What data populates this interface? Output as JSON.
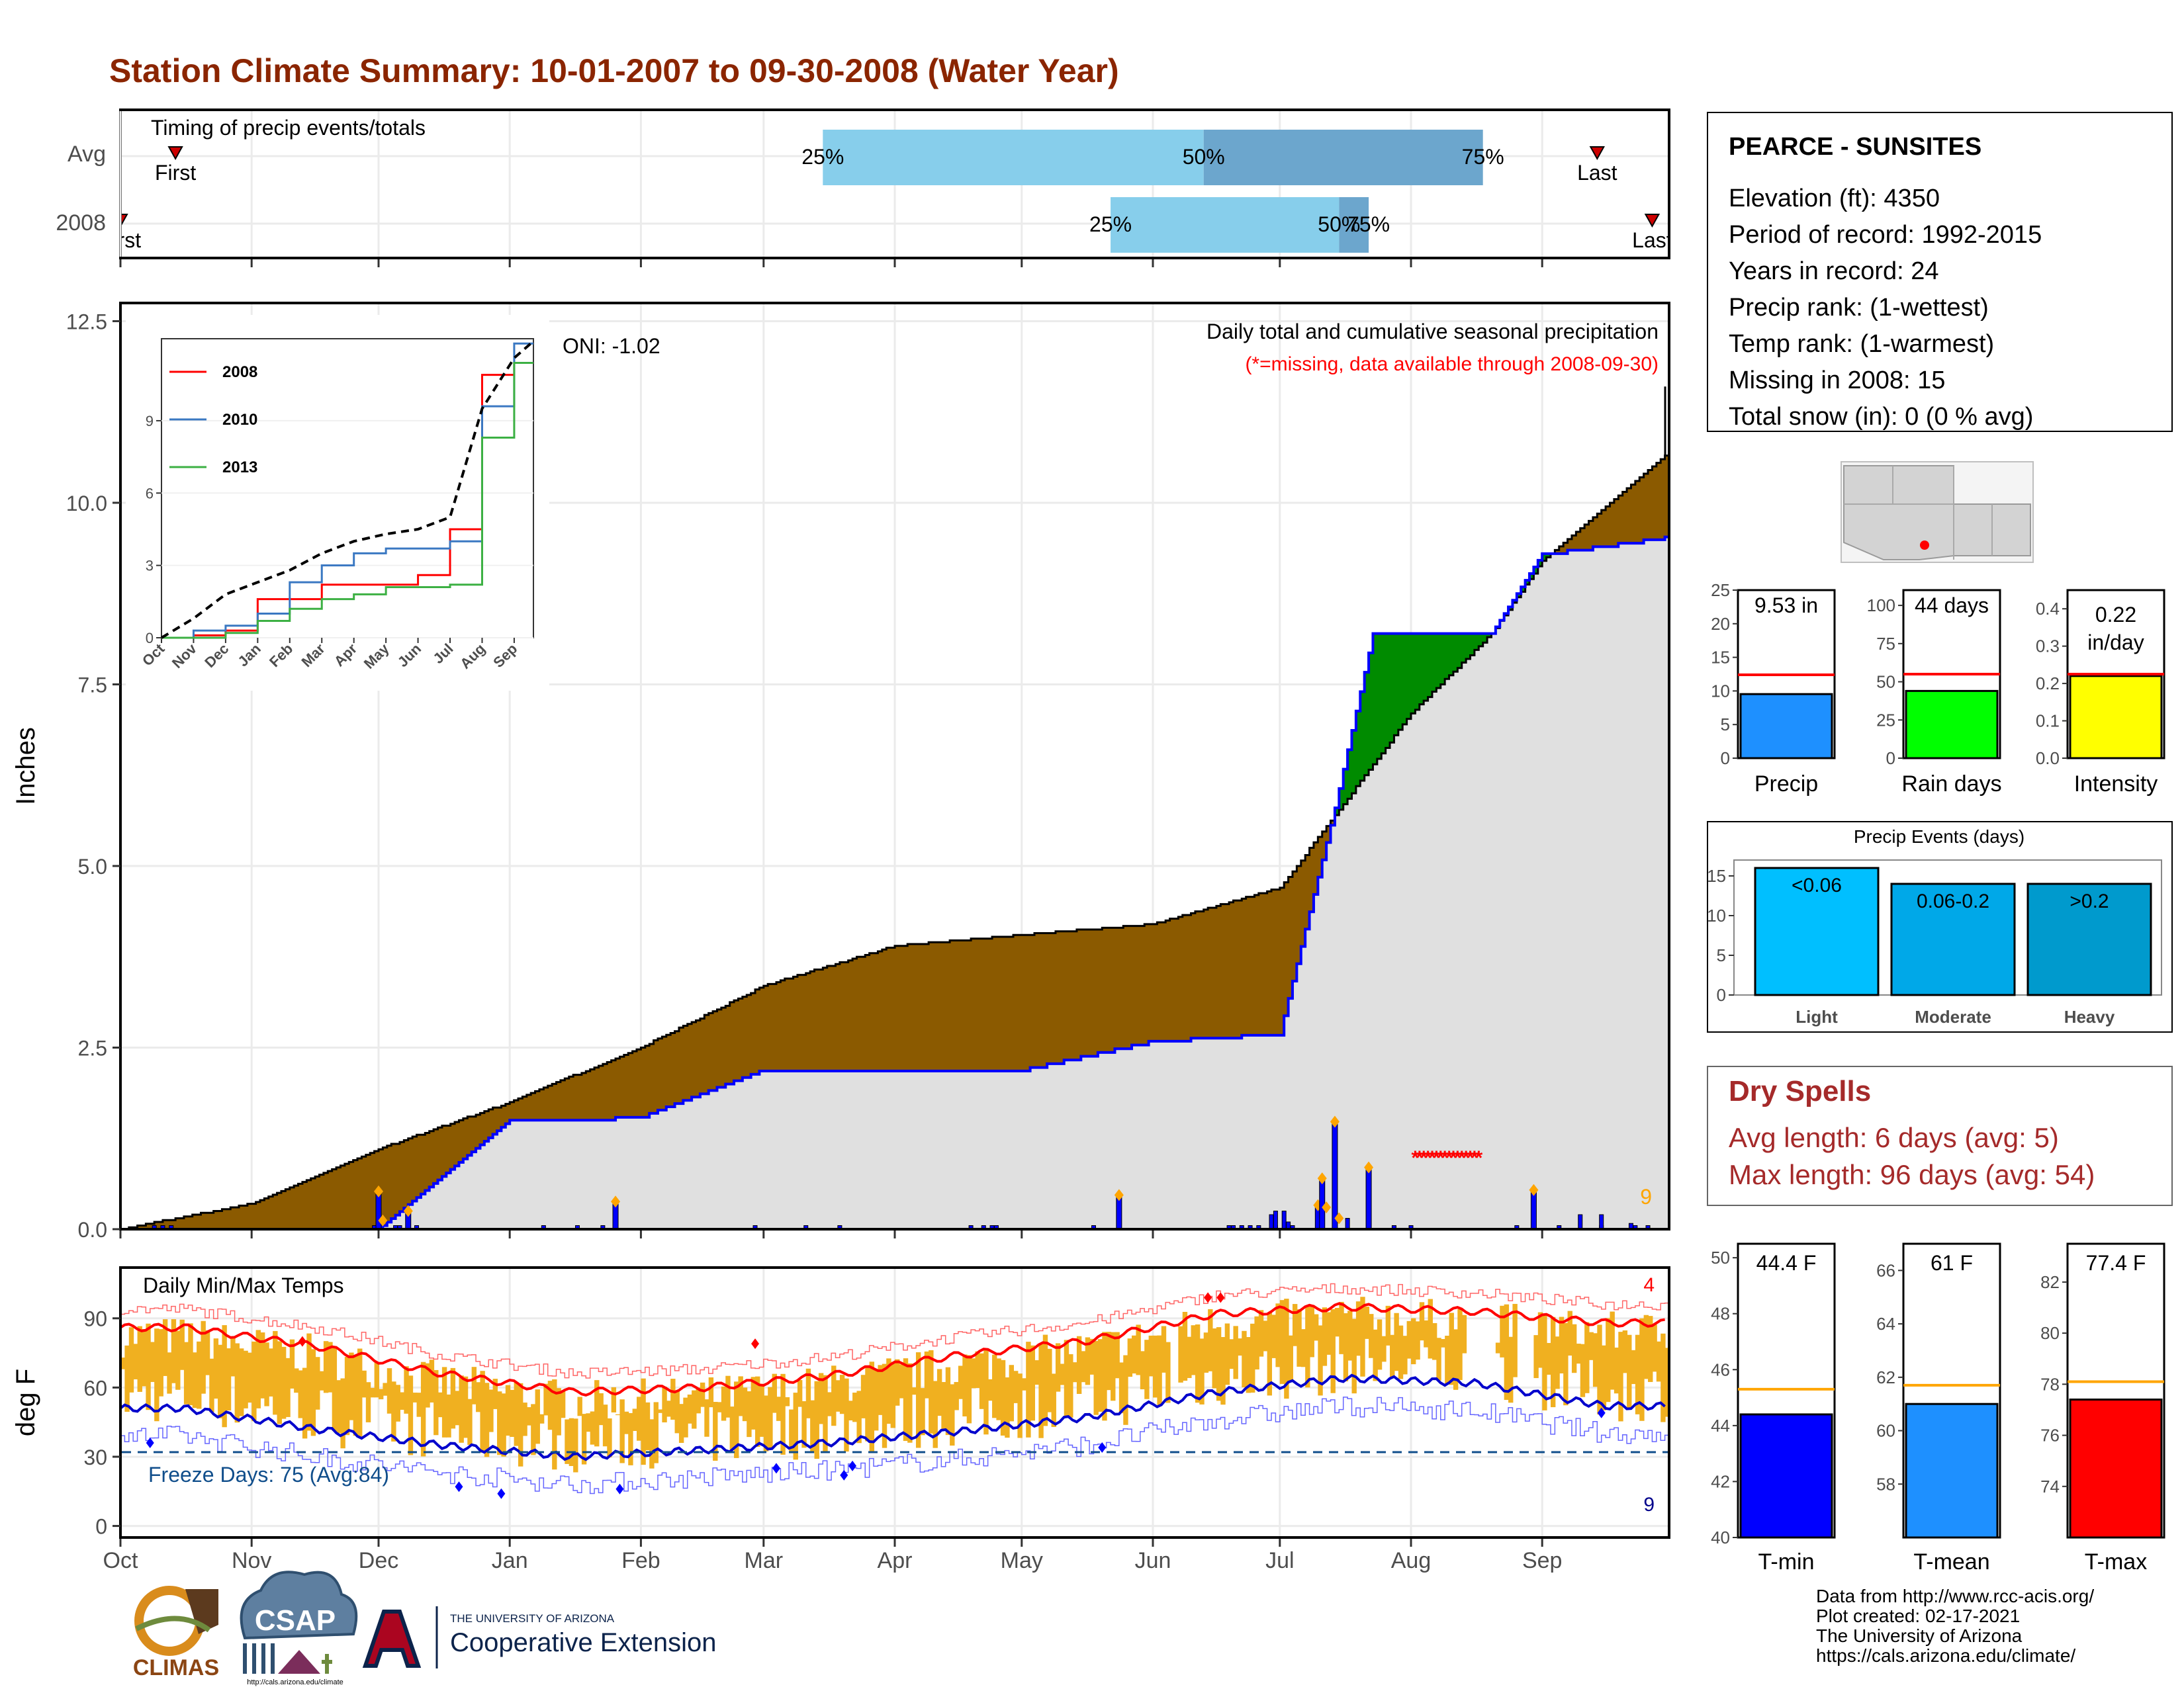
{
  "title": "Station Climate Summary: 10-01-2007 to 09-30-2008 (Water Year)",
  "colors": {
    "title": "#8B2500",
    "brown": "#8B5A00",
    "green": "#008B00",
    "blue": "#0000FF",
    "light_gray": "#E0E0E0",
    "gold": "#F0B020",
    "red": "#FF0000",
    "orange": "#FFA500",
    "dark_blue": "#00008B",
    "dry_red": "#A52A2A"
  },
  "timing": {
    "title": "Timing of precip events/totals",
    "rows": [
      "Avg",
      "2008"
    ],
    "avg": {
      "p25_label": "25%",
      "p50_label": "50%",
      "p75_label": "75%",
      "first": "First",
      "last": "Last",
      "p25_day": 166,
      "p50_day": 256,
      "p75_day": 322,
      "first_day": 13,
      "last_day": 349
    },
    "y2008": {
      "p25_label": "25%",
      "p50_label": "50%",
      "p75_label": "75%",
      "first": "First",
      "last": "Last",
      "p25_day": 234,
      "p50_day": 288,
      "p75_day": 295,
      "first_day": 0,
      "last_day": 362
    }
  },
  "precip": {
    "ylabel": "Inches",
    "oni": "ONI: -1.02",
    "subtitle": "Daily total and cumulative seasonal precipitation",
    "missing_note": "(*=missing, data available through 2008-09-30)",
    "count_label": "9",
    "ylim": [
      0,
      12.5
    ],
    "yticks": [
      "0.0",
      "2.5",
      "5.0",
      "7.5",
      "10.0",
      "12.5"
    ]
  },
  "inset": {
    "xlabels": [
      "Oct",
      "Nov",
      "Dec",
      "Jan",
      "Feb",
      "Mar",
      "Apr",
      "May",
      "Jun",
      "Jul",
      "Aug",
      "Sep"
    ],
    "yticks": [
      "0",
      "3",
      "6",
      "9"
    ],
    "legend": [
      "2008",
      "2010",
      "2013"
    ]
  },
  "temps": {
    "ylabel": "deg F",
    "title": "Daily Min/Max Temps",
    "freeze": "Freeze Days: 75 (Avg:84)",
    "max_count": "4",
    "min_count": "9",
    "yticks": [
      "0",
      "30",
      "60",
      "90"
    ],
    "ylim": [
      -5,
      112
    ]
  },
  "months": [
    "Oct",
    "Nov",
    "Dec",
    "Jan",
    "Feb",
    "Mar",
    "Apr",
    "May",
    "Jun",
    "Jul",
    "Aug",
    "Sep"
  ],
  "station": {
    "name": "PEARCE - SUNSITES",
    "lines": [
      "Elevation (ft): 4350",
      "Period of record: 1992-2015",
      "Years in record: 24",
      "Precip rank:  (1-wettest)",
      "Temp rank:  (1-warmest)",
      "Missing in 2008: 15",
      "Total snow (in): 0 (0 % avg)"
    ]
  },
  "mini_bars": [
    {
      "label": "Precip",
      "value_text": "9.53 in",
      "value": 9.53,
      "avg": 12.4,
      "ylim": [
        0,
        25
      ],
      "yticks": [
        "0",
        "5",
        "10",
        "15",
        "20",
        "25"
      ],
      "color": "#1E90FF"
    },
    {
      "label": "Rain days",
      "value_text": "44 days",
      "value": 44,
      "avg": 55,
      "ylim": [
        0,
        110
      ],
      "yticks": [
        "0",
        "25",
        "50",
        "75",
        "100"
      ],
      "color": "#00FF00"
    },
    {
      "label": "Intensity",
      "value_text": "0.22 in/day",
      "value": 0.22,
      "avg": 0.225,
      "ylim": [
        0,
        0.45
      ],
      "yticks": [
        "0.0",
        "0.1",
        "0.2",
        "0.3",
        "0.4"
      ],
      "color": "#FFFF00"
    }
  ],
  "events": {
    "title": "Precip Events (days)",
    "yticks": [
      "0",
      "5",
      "10",
      "15"
    ],
    "bars": [
      {
        "label": "Light",
        "inner": "<0.06",
        "value": 16,
        "color": "#00BFFF"
      },
      {
        "label": "Moderate",
        "inner": "0.06-0.2",
        "value": 14,
        "color": "#00A8E8"
      },
      {
        "label": "Heavy",
        "inner": ">0.2",
        "value": 14,
        "color": "#009ACD"
      }
    ]
  },
  "dry_spells": {
    "title": "Dry Spells",
    "avg": "Avg length: 6 days (avg: 5)",
    "max": "Max length: 96 days (avg: 54)"
  },
  "temp_bars": [
    {
      "label": "T-min",
      "value_text": "44.4 F",
      "value": 44.4,
      "avg": 45.3,
      "ylim": [
        40,
        50.5
      ],
      "yticks": [
        "40",
        "42",
        "44",
        "46",
        "48",
        "50"
      ],
      "color": "#0000FF"
    },
    {
      "label": "T-mean",
      "value_text": "61 F",
      "value": 61.0,
      "avg": 61.7,
      "ylim": [
        56,
        67
      ],
      "yticks": [
        "58",
        "60",
        "62",
        "64",
        "66"
      ],
      "color": "#1E90FF"
    },
    {
      "label": "T-max",
      "value_text": "77.4 F",
      "value": 77.4,
      "avg": 78.1,
      "ylim": [
        72,
        83.5
      ],
      "yticks": [
        "74",
        "76",
        "78",
        "80",
        "82"
      ],
      "color": "#FF0000"
    }
  ],
  "logos": {
    "climas": "CLIMAS",
    "csap": "CSAP",
    "csap_url": "http://cals.arizona.edu/climate",
    "ua_small": "THE UNIVERSITY OF ARIZONA",
    "ua_big": "Cooperative Extension"
  },
  "footer": [
    "Data from http://www.rcc-acis.org/",
    "Plot created: 02-17-2021",
    "The University of Arizona",
    "https://cals.arizona.edu/climate/"
  ],
  "chart_data": [
    {
      "type": "area",
      "title": "Daily total and cumulative seasonal precipitation",
      "ylabel": "Inches",
      "ylim": [
        0,
        12.5
      ],
      "x": [
        "2007-10-01",
        "2007-11-01",
        "2007-12-01",
        "2008-01-01",
        "2008-02-01",
        "2008-03-01",
        "2008-04-01",
        "2008-05-01",
        "2008-06-01",
        "2008-07-01",
        "2008-07-14",
        "2008-07-23",
        "2008-08-01",
        "2008-08-20",
        "2008-09-01",
        "2008-09-30"
      ],
      "series": [
        {
          "name": "2008",
          "values": [
            0,
            0,
            0,
            1.5,
            1.55,
            2.2,
            2.2,
            2.2,
            2.6,
            2.7,
            5.8,
            8.2,
            8.2,
            8.2,
            9.3,
            9.53
          ]
        },
        {
          "name": "Avg",
          "values": [
            0,
            0.35,
            1.1,
            1.75,
            2.5,
            3.35,
            3.9,
            4.05,
            4.2,
            4.7,
            5.7,
            6.4,
            7.1,
            8.2,
            9.2,
            10.65
          ]
        }
      ],
      "daily_precip": [
        {
          "date": "2007-12-01",
          "value": 0.52
        },
        {
          "date": "2007-12-08",
          "value": 0.25
        },
        {
          "date": "2008-01-26",
          "value": 0.38
        },
        {
          "date": "2008-05-24",
          "value": 0.47
        },
        {
          "date": "2008-07-10",
          "value": 0.33
        },
        {
          "date": "2008-07-11",
          "value": 0.7
        },
        {
          "date": "2008-07-14",
          "value": 1.48
        },
        {
          "date": "2008-07-22",
          "value": 0.85
        },
        {
          "date": "2008-08-30",
          "value": 0.54
        }
      ]
    },
    {
      "type": "line",
      "title": "",
      "x": [
        "Oct",
        "Nov",
        "Dec",
        "Jan",
        "Feb",
        "Mar",
        "Apr",
        "May",
        "Jun",
        "Jul",
        "Aug",
        "Sep"
      ],
      "ylim": [
        0,
        12
      ],
      "series": [
        {
          "name": "2008",
          "values": [
            0,
            0.1,
            0.3,
            1.6,
            1.6,
            2.2,
            2.2,
            2.2,
            2.6,
            4.5,
            10.9,
            11.4
          ]
        },
        {
          "name": "2010",
          "values": [
            0,
            0.3,
            0.5,
            1.0,
            2.3,
            3.0,
            3.5,
            3.7,
            3.7,
            4.0,
            9.6,
            12.2
          ]
        },
        {
          "name": "2013",
          "values": [
            0,
            0.0,
            0.2,
            0.7,
            1.2,
            1.6,
            1.8,
            2.1,
            2.1,
            2.2,
            8.3,
            11.4
          ]
        },
        {
          "name": "",
          "values": [
            0,
            0.8,
            1.8,
            2.3,
            2.8,
            3.5,
            4.0,
            4.3,
            4.5,
            5.0,
            9.5,
            11.6
          ]
        }
      ]
    },
    {
      "type": "line",
      "title": "Daily Min/Max Temps",
      "ylabel": "deg F",
      "x": [
        "Oct",
        "Nov",
        "Dec",
        "Jan",
        "Feb",
        "Mar",
        "Apr",
        "May",
        "Jun",
        "Jul",
        "Aug",
        "Sep"
      ],
      "ylim": [
        -5,
        112
      ],
      "series": [
        {
          "name": "",
          "values": [
            86,
            78,
            66,
            58,
            60,
            65,
            74,
            80,
            92,
            95,
            93,
            88
          ]
        },
        {
          "name": "",
          "values": [
            51,
            42,
            35,
            30,
            33,
            36,
            41,
            47,
            58,
            64,
            62,
            52
          ]
        }
      ]
    }
  ]
}
